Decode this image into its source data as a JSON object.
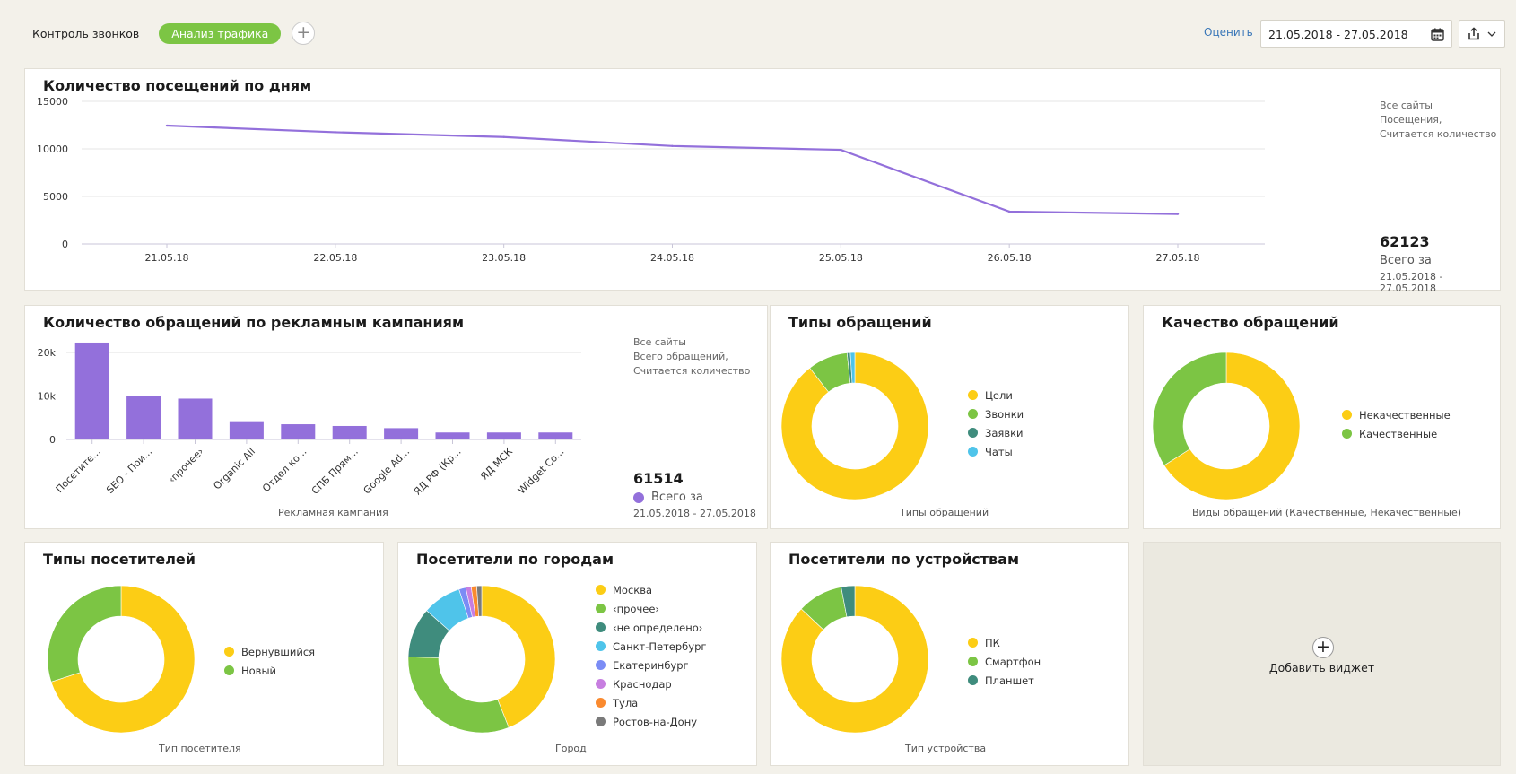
{
  "tabs": {
    "calls": "Контроль звонков",
    "traffic": "Анализ трафика",
    "add": "+"
  },
  "header": {
    "rate": "Оценить",
    "date_range": "21.05.2018 - 27.05.2018"
  },
  "visits": {
    "title": "Количество посещений по дням",
    "note": [
      "Все сайты",
      "Посещения,",
      "Считается количество"
    ],
    "total": "62123",
    "total_label": "Всего за",
    "total_range": "21.05.2018 - 27.05.2018"
  },
  "campaigns": {
    "title": "Количество обращений по рекламным кампаниям",
    "note": [
      "Все сайты",
      "Всего обращений,",
      "Считается количество"
    ],
    "total": "61514",
    "total_label": "Всего за",
    "total_range": "21.05.2018 - 27.05.2018",
    "xcaption": "Рекламная кампания"
  },
  "types": {
    "title": "Типы обращений",
    "caption": "Типы обращений"
  },
  "quality": {
    "title": "Качество обращений",
    "caption": "Виды обращений (Качественные, Некачественные)"
  },
  "visitor_types": {
    "title": "Типы посетителей",
    "caption": "Тип посетителя"
  },
  "cities": {
    "title": "Посетители по городам",
    "caption": "Город"
  },
  "devices": {
    "title": "Посетители по устройствам",
    "caption": "Тип устройства"
  },
  "add_widget": {
    "plus": "+",
    "label": "Добавить виджет"
  },
  "chart_data": [
    {
      "type": "line",
      "x": [
        "21.05.18",
        "22.05.18",
        "23.05.18",
        "24.05.18",
        "25.05.18",
        "26.05.18",
        "27.05.18"
      ],
      "series": [
        {
          "values": [
            12450,
            11750,
            11250,
            10300,
            9900,
            3400,
            3150
          ],
          "color": "#9370db"
        }
      ],
      "yticks": [
        "0",
        "5000",
        "10000",
        "15000"
      ],
      "ylim": [
        0,
        15000
      ],
      "grid": true
    },
    {
      "type": "bar",
      "categories": [
        "Посетите...",
        "SEO - Пои...",
        "‹прочее›",
        "Organic All",
        "Отдел ко...",
        "СПБ Прям...",
        "Google Ad...",
        "ЯД РФ (Кр...",
        "ЯД МСК",
        "Widget Co..."
      ],
      "values": [
        22300,
        10000,
        9400,
        4200,
        3500,
        3100,
        2600,
        1600,
        1600,
        1600
      ],
      "yticks": [
        "0",
        "10k",
        "20k"
      ],
      "ylim": [
        0,
        22500
      ],
      "xlabel": "Рекламная кампания",
      "color": "#9370db"
    },
    {
      "type": "pie",
      "labels": [
        "Цели",
        "Звонки",
        "Заявки",
        "Чаты"
      ],
      "values": [
        89.5,
        8.8,
        0.7,
        1.0
      ],
      "colors": [
        "#fccd15",
        "#7cc544",
        "#3f8c7d",
        "#4fc4ea"
      ],
      "xlabel": "Типы обращений"
    },
    {
      "type": "pie",
      "labels": [
        "Некачественные",
        "Качественные"
      ],
      "values": [
        66,
        34
      ],
      "colors": [
        "#fccd15",
        "#7cc544"
      ],
      "xlabel": "Виды обращений (Качественные, Некачественные)"
    },
    {
      "type": "pie",
      "labels": [
        "Вернувшийся",
        "Новый"
      ],
      "values": [
        70,
        30
      ],
      "colors": [
        "#fccd15",
        "#7cc544"
      ],
      "xlabel": "Тип посетителя"
    },
    {
      "type": "pie",
      "labels": [
        "Москва",
        "‹прочее›",
        "‹не определено›",
        "Санкт-Петербург",
        "Екатеринбург",
        "Краснодар",
        "Тула",
        "Ростов-на-Дону"
      ],
      "values": [
        44,
        31.5,
        11,
        8.5,
        1.5,
        1.2,
        1.2,
        1.1
      ],
      "colors": [
        "#fccd15",
        "#7cc544",
        "#3f8c7d",
        "#4fc4ea",
        "#7b8cf5",
        "#c77ee0",
        "#fa8a2f",
        "#7a7a7a"
      ],
      "xlabel": "Город"
    },
    {
      "type": "pie",
      "labels": [
        "ПК",
        "Смартфон",
        "Планшет"
      ],
      "values": [
        87,
        10,
        3
      ],
      "colors": [
        "#fccd15",
        "#7cc544",
        "#3f8c7d"
      ],
      "xlabel": "Тип устройства"
    }
  ]
}
